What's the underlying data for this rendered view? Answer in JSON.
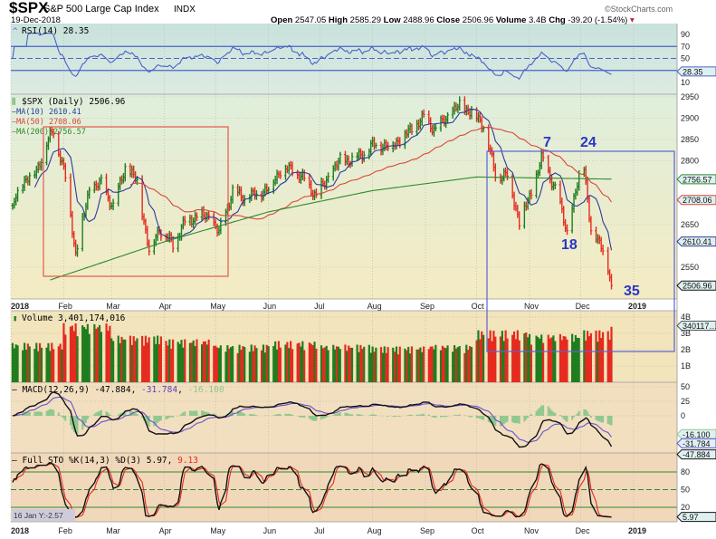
{
  "header": {
    "symbol": "$SPX",
    "name": "S&P 500 Large Cap Index",
    "exchange": "INDX",
    "date": "19-Dec-2018",
    "watermark": "©StockCharts.com",
    "open_label": "Open",
    "open": "2547.05",
    "high_label": "High",
    "high": "2585.29",
    "low_label": "Low",
    "low": "2488.96",
    "close_label": "Close",
    "close": "2506.96",
    "volume_label": "Volume",
    "volume": "3.4B",
    "chg_label": "Chg",
    "chg": "-39.20 (-1.54%)",
    "chg_direction": "down"
  },
  "panels": {
    "rsi": {
      "legend": "RSI(14) 28.35",
      "value_tag": "28.35",
      "ticks": [
        "90",
        "70",
        "50",
        "10"
      ],
      "color": "#4a63c8"
    },
    "price": {
      "legend": "$SPX (Daily) 2506.96",
      "ma10": "MA(10) 2610.41",
      "ma50": "MA(50) 2708.06",
      "ma200": "MA(200) 2756.57",
      "tags": {
        "ma200": "2756.57",
        "ma50": "2708.06",
        "ma10": "2610.41",
        "close": "2506.96"
      },
      "ticks": [
        "2950",
        "2900",
        "2850",
        "2800",
        "2650",
        "2550"
      ]
    },
    "volume": {
      "legend": "Volume 3,401,174,016",
      "value_tag": "340117…",
      "ticks": [
        "4B",
        "3B",
        "2B",
        "1B"
      ]
    },
    "macd": {
      "legend_name": "MACD(12,26,9)",
      "macd": "-47.884",
      "signal": "-31.784",
      "hist": "-16.100",
      "ticks": [
        "50",
        "25",
        "0"
      ]
    },
    "sto": {
      "legend_name": "Full STO %K(14,3) %D(3)",
      "k": "5.97",
      "d": "9.13",
      "value_tag": "5.97",
      "ticks": [
        "80",
        "50",
        "20"
      ]
    }
  },
  "x_axis": {
    "labels": [
      "2018",
      "Feb",
      "Mar",
      "Apr",
      "May",
      "Jun",
      "Jul",
      "Aug",
      "Sep",
      "Oct",
      "Nov",
      "Dec",
      "2019"
    ]
  },
  "crosshair_readout": "16 Jan Y:-2.57",
  "annotations": {
    "labels": [
      "7",
      "24",
      "18",
      "35"
    ],
    "box_colors": {
      "first_box": "#e8584a",
      "second_box": "#5a62d8"
    },
    "label_color": "#2a35c8"
  },
  "colors": {
    "up": "#1f7d1f",
    "down": "#e52a1f",
    "ma10": "#2b3b9a",
    "ma50": "#d9463a",
    "ma200": "#2e8a2e"
  },
  "chart_data": {
    "type": "ohlc",
    "title": "$SPX S&P 500 Large Cap Index INDX",
    "ylim": [
      2480,
      2960
    ],
    "closes": [
      [
        "2018-01-02",
        2695
      ],
      [
        "2018-01-08",
        2750
      ],
      [
        "2018-01-16",
        2776
      ],
      [
        "2018-01-22",
        2840
      ],
      [
        "2018-01-26",
        2872
      ],
      [
        "2018-02-02",
        2762
      ],
      [
        "2018-02-08",
        2581
      ],
      [
        "2018-02-16",
        2732
      ],
      [
        "2018-02-23",
        2747
      ],
      [
        "2018-03-02",
        2691
      ],
      [
        "2018-03-09",
        2786
      ],
      [
        "2018-03-16",
        2752
      ],
      [
        "2018-03-23",
        2588
      ],
      [
        "2018-03-29",
        2640
      ],
      [
        "2018-04-06",
        2604
      ],
      [
        "2018-04-13",
        2656
      ],
      [
        "2018-04-20",
        2670
      ],
      [
        "2018-04-27",
        2669
      ],
      [
        "2018-05-03",
        2630
      ],
      [
        "2018-05-11",
        2728
      ],
      [
        "2018-05-18",
        2713
      ],
      [
        "2018-05-25",
        2721
      ],
      [
        "2018-06-01",
        2735
      ],
      [
        "2018-06-08",
        2779
      ],
      [
        "2018-06-15",
        2780
      ],
      [
        "2018-06-22",
        2755
      ],
      [
        "2018-06-29",
        2718
      ],
      [
        "2018-07-06",
        2760
      ],
      [
        "2018-07-13",
        2801
      ],
      [
        "2018-07-20",
        2802
      ],
      [
        "2018-07-27",
        2819
      ],
      [
        "2018-08-03",
        2840
      ],
      [
        "2018-08-10",
        2833
      ],
      [
        "2018-08-17",
        2850
      ],
      [
        "2018-08-24",
        2875
      ],
      [
        "2018-08-31",
        2901
      ],
      [
        "2018-09-07",
        2872
      ],
      [
        "2018-09-14",
        2904
      ],
      [
        "2018-09-21",
        2930
      ],
      [
        "2018-09-28",
        2914
      ],
      [
        "2018-10-05",
        2885
      ],
      [
        "2018-10-12",
        2767
      ],
      [
        "2018-10-19",
        2767
      ],
      [
        "2018-10-26",
        2658
      ],
      [
        "2018-11-02",
        2723
      ],
      [
        "2018-11-08",
        2806
      ],
      [
        "2018-11-16",
        2736
      ],
      [
        "2018-11-23",
        2633
      ],
      [
        "2018-11-30",
        2760
      ],
      [
        "2018-12-03",
        2790
      ],
      [
        "2018-12-07",
        2633
      ],
      [
        "2018-12-14",
        2600
      ],
      [
        "2018-12-19",
        2507
      ]
    ],
    "ma200": [
      [
        "2018-01-24",
        2520
      ],
      [
        "2018-04-01",
        2610
      ],
      [
        "2018-06-01",
        2680
      ],
      [
        "2018-08-01",
        2730
      ],
      [
        "2018-10-01",
        2762
      ],
      [
        "2018-12-19",
        2757
      ]
    ],
    "volume_monthly_billions": [
      2.2,
      3.3,
      2.6,
      2.4,
      2.1,
      2.3,
      2.1,
      2.0,
      2.1,
      2.9,
      2.7,
      2.9
    ],
    "last_volume": 3401174016
  }
}
